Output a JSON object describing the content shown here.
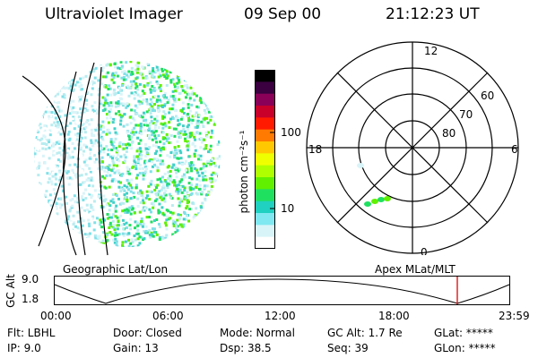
{
  "header": {
    "instrument": "Ultraviolet Imager",
    "date": "09 Sep 00",
    "time": "21:12:23 UT"
  },
  "colorbar": {
    "unit_label": "photon cm⁻²s⁻¹",
    "tick_100": "100",
    "tick_10": "10",
    "colors": [
      "#000000",
      "#3a0040",
      "#8a0058",
      "#c8002a",
      "#ff1a00",
      "#ff7a00",
      "#ffc800",
      "#f0ff00",
      "#b0ff00",
      "#60f000",
      "#20e060",
      "#20d0c0",
      "#80e8f0",
      "#d8f4f8",
      "#ffffff"
    ]
  },
  "panels": {
    "left_label": "Geographic Lat/Lon",
    "right_label": "Apex MLat/MLT"
  },
  "polar_plot": {
    "mlt_12": "12",
    "mlt_18": "18",
    "mlt_6": "6",
    "mlt_0": "0",
    "lat_60": "60",
    "lat_70": "70",
    "lat_80": "80"
  },
  "orbit": {
    "axis_label": "GC Alt",
    "y_top": "9.0",
    "y_bottom": "1.8",
    "x_ticks": [
      "00:00",
      "06:00",
      "12:00",
      "18:00",
      "23:59"
    ],
    "marker_color": "#e00000"
  },
  "footer": {
    "flt": "Flt: LBHL",
    "ip": "IP:  9.0",
    "door": "Door: Closed",
    "gain": "Gain: 13",
    "mode": "Mode: Normal",
    "dsp": "Dsp:   38.5",
    "gc_alt": "GC Alt: 1.7 Re",
    "seq": "Seq: 39",
    "glat": "GLat: *****",
    "glon": "GLon: *****"
  }
}
